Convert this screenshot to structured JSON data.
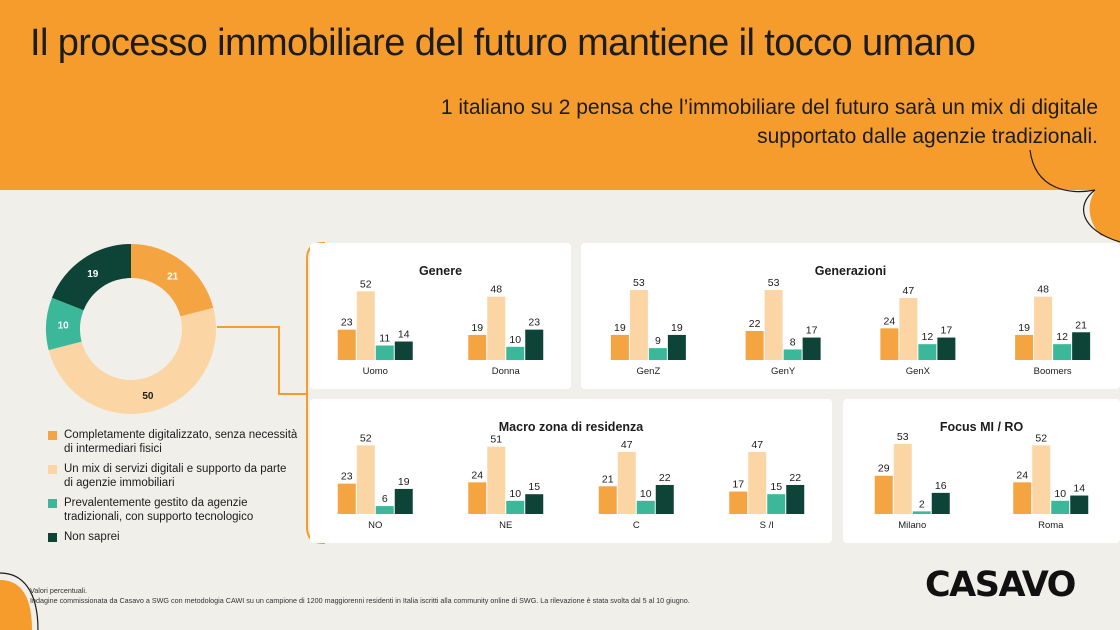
{
  "header": {
    "title": "Il processo immobiliare del futuro mantiene il tocco umano",
    "subtitle_line1": "1 italiano su 2 pensa che l’immobiliare del futuro sarà un mix di digitale",
    "subtitle_line2": "supportato dalle agenzie tradizionali."
  },
  "colors": {
    "orange": "#f5a442",
    "peach": "#fbd5a4",
    "teal": "#3bb89a",
    "dark": "#0e4438",
    "header_bg": "#f59c2d",
    "page_bg": "#f1efea"
  },
  "legend": [
    {
      "label": "Completamente digitalizzato, senza necessità di intermediari fisici",
      "color": "#f5a442"
    },
    {
      "label": "Un mix di servizi digitali e supporto da parte di agenzie immobiliari",
      "color": "#fbd5a4"
    },
    {
      "label": "Prevalentemente gestito da agenzie tradizionali, con supporto tecnologico",
      "color": "#3bb89a"
    },
    {
      "label": "Non saprei",
      "color": "#0e4438"
    }
  ],
  "chart_data": [
    {
      "type": "pie",
      "labels": [
        "Completamente digitalizzato, senza necessità di intermediari fisici",
        "Un mix di servizi digitali e supporto da parte di agenzie immobiliari",
        "Prevalentemente gestito da agenzie tradizionali, con supporto tecnologico",
        "Non saprei"
      ],
      "values": [
        21,
        50,
        10,
        19
      ]
    },
    {
      "type": "bar",
      "title": "Genere",
      "categories": [
        "Uomo",
        "Donna"
      ],
      "series": [
        {
          "name": "Completamente digitalizzato, senza necessità di intermediari fisici",
          "values": [
            23,
            19
          ]
        },
        {
          "name": "Un mix di servizi digitali e supporto da parte di agenzie immobiliari",
          "values": [
            52,
            48
          ]
        },
        {
          "name": "Prevalentemente gestito da agenzie tradizionali, con supporto tecnologico",
          "values": [
            11,
            10
          ]
        },
        {
          "name": "Non saprei",
          "values": [
            14,
            23
          ]
        }
      ]
    },
    {
      "type": "bar",
      "title": "Generazioni",
      "categories": [
        "GenZ",
        "GenY",
        "GenX",
        "Boomers"
      ],
      "series": [
        {
          "name": "Completamente digitalizzato, senza necessità di intermediari fisici",
          "values": [
            19,
            22,
            24,
            19
          ]
        },
        {
          "name": "Un mix di servizi digitali e supporto da parte di agenzie immobiliari",
          "values": [
            53,
            53,
            47,
            48
          ]
        },
        {
          "name": "Prevalentemente gestito da agenzie tradizionali, con supporto tecnologico",
          "values": [
            9,
            8,
            12,
            12
          ]
        },
        {
          "name": "Non saprei",
          "values": [
            19,
            17,
            17,
            21
          ]
        }
      ]
    },
    {
      "type": "bar",
      "title": "Macro zona di residenza",
      "categories": [
        "NO",
        "NE",
        "C",
        "S /I"
      ],
      "series": [
        {
          "name": "Completamente digitalizzato, senza necessità di intermediari fisici",
          "values": [
            23,
            24,
            21,
            17
          ]
        },
        {
          "name": "Un mix di servizi digitali e supporto da parte di agenzie immobiliari",
          "values": [
            52,
            51,
            47,
            47
          ]
        },
        {
          "name": "Prevalentemente gestito da agenzie tradizionali, con supporto tecnologico",
          "values": [
            6,
            10,
            10,
            15
          ]
        },
        {
          "name": "Non saprei",
          "values": [
            19,
            15,
            22,
            22
          ]
        }
      ]
    },
    {
      "type": "bar",
      "title": "Focus MI / RO",
      "categories": [
        "Milano",
        "Roma"
      ],
      "series": [
        {
          "name": "Completamente digitalizzato, senza necessità di intermediari fisici",
          "values": [
            29,
            24
          ]
        },
        {
          "name": "Un mix di servizi digitali e supporto da parte di agenzie immobiliari",
          "values": [
            53,
            52
          ]
        },
        {
          "name": "Prevalentemente gestito da agenzie tradizionali, con supporto tecnologico",
          "values": [
            2,
            10
          ]
        },
        {
          "name": "Non saprei",
          "values": [
            16,
            14
          ]
        }
      ]
    }
  ],
  "footer": {
    "line1": "Valori percentuali.",
    "line2": "Indagine commissionata da Casavo a SWG con metodologia CAWI su un campione di 1200 maggiorenni residenti in Italia iscritti alla community online di SWG. La rilevazione è stata svolta dal 5 al 10 giugno."
  },
  "logo": "CASAVO"
}
